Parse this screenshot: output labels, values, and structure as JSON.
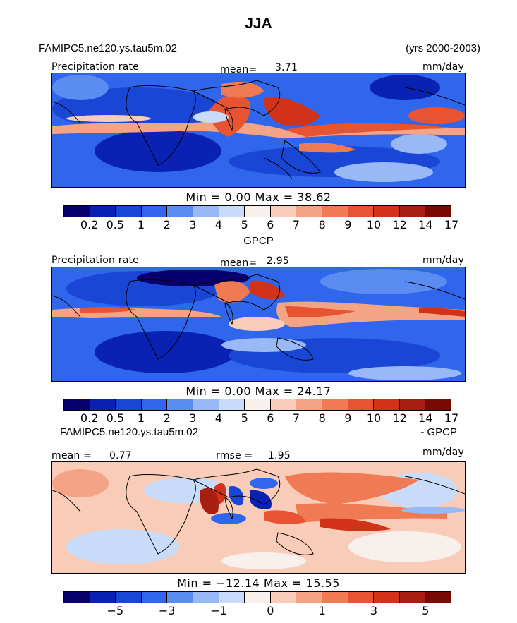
{
  "title": "JJA",
  "case_name": "FAMIPC5.ne120.ys.tau5m.02",
  "years": "(yrs 2000-2003)",
  "obs_name": "GPCP",
  "panel1": {
    "variable": "Precipitation rate",
    "mean_label": "mean=",
    "mean_value": "3.71",
    "units": "mm/day",
    "stats": "Min =    0.00 Max =   38.62"
  },
  "panel2": {
    "header": "GPCP",
    "variable": "Precipitation rate",
    "mean_label": "mean=",
    "mean_value": "2.95",
    "units": "mm/day",
    "stats": "Min =    0.00 Max =   24.17"
  },
  "panel3": {
    "header_left": "FAMIPC5.ne120.ys.tau5m.02",
    "header_right": "- GPCP",
    "mean_label": "mean =",
    "mean_value": "0.77",
    "rmse_label": "rmse =",
    "rmse_value": "1.95",
    "units": "mm/day",
    "stats": "Min = −12.14 Max =   15.55"
  },
  "colorbar_abs": {
    "colors": [
      "#08006e",
      "#0a22b4",
      "#1a46d6",
      "#2f66ec",
      "#5a8cf2",
      "#98b8f6",
      "#c8dcfa",
      "#f8f0ec",
      "#f8ccb8",
      "#f4a484",
      "#f07a54",
      "#e85432",
      "#d23218",
      "#a81e10",
      "#7a0a04"
    ],
    "labels": [
      "0.2",
      "0.5",
      "1",
      "2",
      "3",
      "4",
      "5",
      "6",
      "7",
      "8",
      "9",
      "10",
      "12",
      "14",
      "17"
    ]
  },
  "colorbar_diff": {
    "colors": [
      "#08006e",
      "#0a22b4",
      "#1a46d6",
      "#2f66ec",
      "#5a8cf2",
      "#98b8f6",
      "#c8dcfa",
      "#f8f0ec",
      "#f8ccb8",
      "#f4a484",
      "#f07a54",
      "#e85432",
      "#d23218",
      "#a81e10",
      "#7a0a04"
    ],
    "labels": [
      "−5",
      "−3",
      "−1",
      "0",
      "1",
      "3",
      "5"
    ]
  }
}
